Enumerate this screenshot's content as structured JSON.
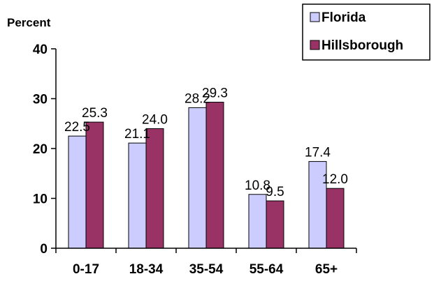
{
  "chart_data": {
    "type": "bar",
    "ylabel": "Percent",
    "ylim": [
      0,
      40
    ],
    "yticks": [
      "0",
      "10",
      "20",
      "30",
      "40"
    ],
    "categories": [
      "0-17",
      "18-34",
      "35-54",
      "55-64",
      "65+"
    ],
    "series": [
      {
        "name": "Florida",
        "values": [
          22.5,
          21.1,
          28.2,
          10.8,
          17.4
        ],
        "labels": [
          "22.5",
          "21.1",
          "28.2",
          "10.8",
          "17.4"
        ],
        "color": "#ccccff"
      },
      {
        "name": "Hillsborough",
        "values": [
          25.3,
          24.0,
          29.3,
          9.5,
          12.0
        ],
        "labels": [
          "25.3",
          "24.0",
          "29.3",
          "9.5",
          "12.0"
        ],
        "color": "#993366"
      }
    ],
    "legend_position": "top-right",
    "grid": false
  }
}
